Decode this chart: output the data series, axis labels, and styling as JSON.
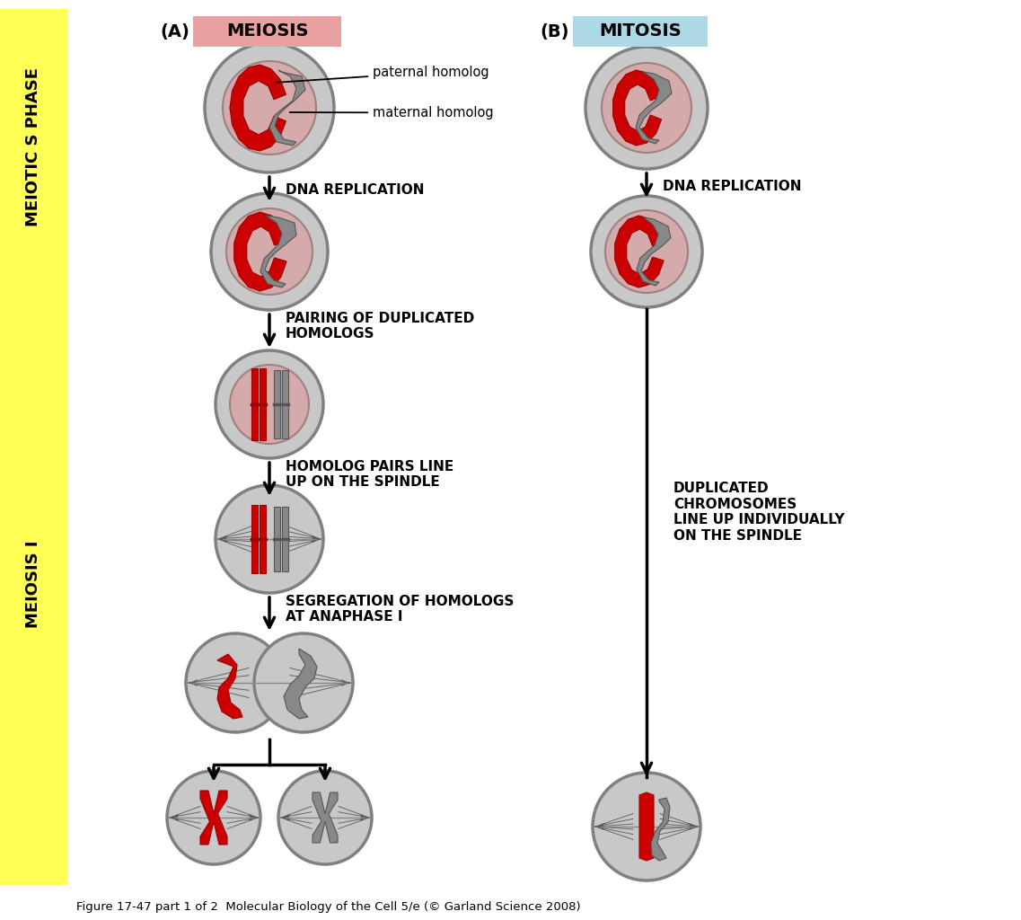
{
  "title_A": "(A)",
  "title_B": "(B)",
  "meiosis_label": "MEIOSIS",
  "mitosis_label": "MITOSIS",
  "meiosis_box_color": "#E8A0A0",
  "mitosis_box_color": "#ADD8E6",
  "side_label1": "MEIOTIC S PHASE",
  "side_label2": "MEIOSIS I",
  "side_bg_color": "#FFFF55",
  "bg_color": "#FFFFFF",
  "label_paternal": "paternal homolog",
  "label_maternal": "maternal homolog",
  "label_dna_rep": "DNA REPLICATION",
  "label_pairing": "PAIRING OF DUPLICATED\nHOMOLOGS",
  "label_homolog_pairs": "HOMOLOG PAIRS LINE\nUP ON THE SPINDLE",
  "label_segregation": "SEGREGATION OF HOMOLOGS\nAT ANAPHASE I",
  "label_duplicated": "DUPLICATED\nCHROMOSOMES\nLINE UP INDIVIDUALLY\nON THE SPINDLE",
  "figure_caption": "Figure 17-47 part 1 of 2  Molecular Biology of the Cell 5/e (© Garland Science 2008)",
  "red_color": "#CC0000",
  "dark_red": "#990000",
  "gray_color": "#888888",
  "dark_gray": "#555555",
  "cell_outer": "#C8C8C8",
  "cell_inner": "#D4AAAA",
  "cell_border_outer": "#808080",
  "cell_border_inner": "#A08080"
}
